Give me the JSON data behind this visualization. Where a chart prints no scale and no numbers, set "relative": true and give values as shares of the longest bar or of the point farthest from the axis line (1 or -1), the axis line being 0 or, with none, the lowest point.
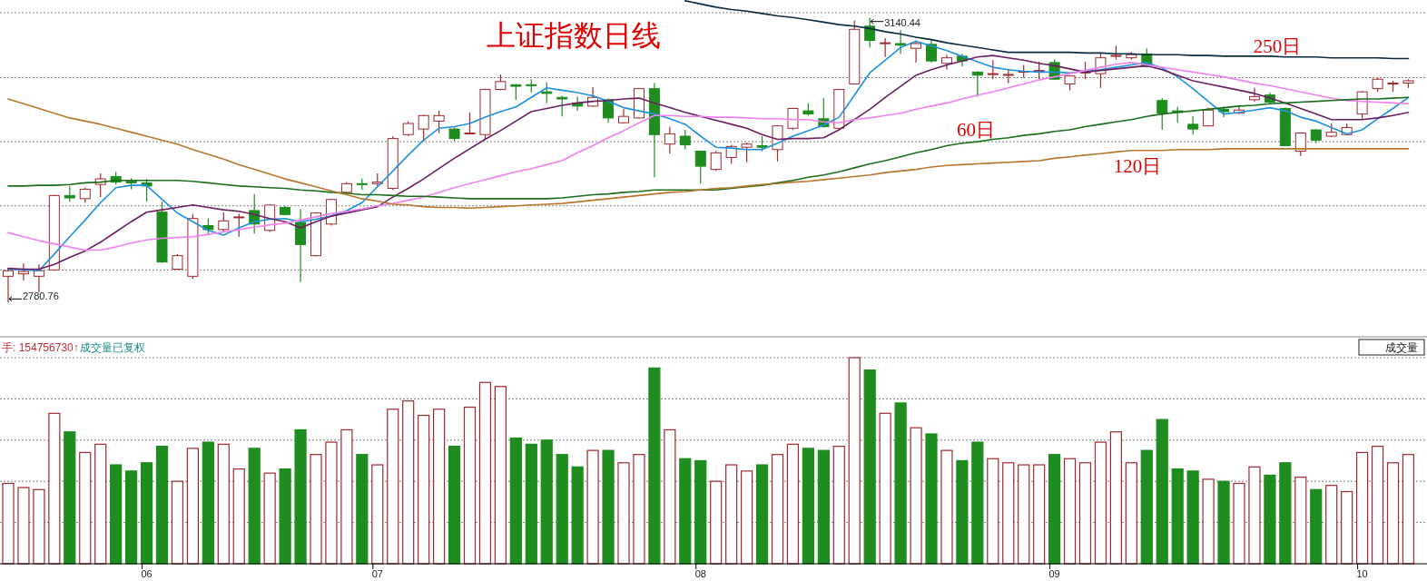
{
  "chart_data": [
    {
      "type": "candlestick",
      "title": "上证指数日线",
      "categories": [
        null,
        null,
        null,
        null,
        null,
        null,
        null,
        null,
        null,
        "06",
        null,
        null,
        null,
        null,
        null,
        null,
        null,
        null,
        null,
        null,
        null,
        null,
        null,
        null,
        "07",
        null,
        null,
        null,
        null,
        null,
        null,
        null,
        null,
        null,
        null,
        null,
        null,
        null,
        null,
        null,
        null,
        null,
        null,
        null,
        null,
        "08",
        null,
        null,
        null,
        null,
        null,
        null,
        null,
        null,
        null,
        null,
        null,
        null,
        null,
        null,
        null,
        null,
        null,
        null,
        null,
        null,
        null,
        null,
        "09",
        null,
        null,
        null,
        null,
        null,
        null,
        null,
        null,
        null,
        null,
        null,
        null,
        null,
        null,
        null,
        null,
        null,
        null,
        null,
        "10",
        null,
        null,
        null
      ],
      "ohlc": [
        [
          2814,
          2824,
          2780.76,
          2821
        ],
        [
          2817,
          2830,
          2809,
          2820
        ],
        [
          2814,
          2829,
          2794,
          2821
        ],
        [
          2822,
          2917,
          2821,
          2916
        ],
        [
          2916,
          2928,
          2908,
          2913
        ],
        [
          2912,
          2926,
          2907,
          2924
        ],
        [
          2930,
          2944,
          2914,
          2937
        ],
        [
          2940,
          2946,
          2930,
          2933
        ],
        [
          2934,
          2938,
          2924,
          2932
        ],
        [
          2932,
          2937,
          2908,
          2928
        ],
        [
          2895,
          2908,
          2831,
          2832
        ],
        [
          2823,
          2842,
          2822,
          2840
        ],
        [
          2814,
          2893,
          2811,
          2887
        ],
        [
          2878,
          2887,
          2866,
          2873
        ],
        [
          2873,
          2895,
          2870,
          2884
        ],
        [
          2888,
          2893,
          2864,
          2889
        ],
        [
          2897,
          2918,
          2868,
          2880
        ],
        [
          2872,
          2905,
          2870,
          2904
        ],
        [
          2901,
          2903,
          2891,
          2892
        ],
        [
          2882,
          2899,
          2807,
          2854
        ],
        [
          2840,
          2895,
          2839,
          2894
        ],
        [
          2880,
          2912,
          2878,
          2911
        ],
        [
          2920,
          2933,
          2918,
          2931
        ],
        [
          2931,
          2937,
          2923,
          2930
        ],
        [
          2931,
          2944,
          2927,
          2933
        ],
        [
          2925,
          2991,
          2923,
          2988
        ],
        [
          2993,
          3010,
          2991,
          3007
        ],
        [
          3000,
          3018,
          2984,
          3017
        ],
        [
          3010,
          3023,
          2995,
          3017
        ],
        [
          3000,
          3002,
          2985,
          2988
        ],
        [
          2994,
          3021,
          2993,
          2995
        ],
        [
          2993,
          3051,
          2987,
          3050
        ],
        [
          3050,
          3069,
          3049,
          3060
        ],
        [
          3056,
          3057,
          3037,
          3054
        ],
        [
          3056,
          3063,
          3046,
          3055
        ],
        [
          3047,
          3059,
          3033,
          3045
        ],
        [
          3040,
          3042,
          3016,
          3038
        ],
        [
          3033,
          3041,
          3023,
          3029
        ],
        [
          3029,
          3053,
          3028,
          3040
        ],
        [
          3037,
          3039,
          3008,
          3014
        ],
        [
          3008,
          3025,
          3007,
          3016
        ],
        [
          3014,
          3052,
          3013,
          3051
        ],
        [
          3051,
          3058,
          2939,
          2993
        ],
        [
          2981,
          3003,
          2969,
          2994
        ],
        [
          2991,
          2999,
          2974,
          2980
        ],
        [
          2972,
          2973,
          2931,
          2953
        ],
        [
          2949,
          2972,
          2947,
          2970
        ],
        [
          2964,
          2980,
          2956,
          2978
        ],
        [
          2977,
          2983,
          2958,
          2981
        ],
        [
          2979,
          2991,
          2972,
          2977
        ],
        [
          2974,
          3005,
          2959,
          3004
        ],
        [
          3001,
          3027,
          2999,
          3026
        ],
        [
          3023,
          3033,
          3017,
          3019
        ],
        [
          3013,
          3039,
          3002,
          3003
        ],
        [
          3001,
          3051,
          3000,
          3050
        ],
        [
          3057,
          3137,
          3056,
          3126
        ],
        [
          3130,
          3140.44,
          3103,
          3112
        ],
        [
          3108,
          3115,
          3091,
          3109
        ],
        [
          3108,
          3125,
          3095,
          3106
        ],
        [
          3102,
          3112,
          3084,
          3108
        ],
        [
          3107,
          3113,
          3084,
          3086
        ],
        [
          3083,
          3094,
          3075,
          3090
        ],
        [
          3092,
          3095,
          3079,
          3086
        ],
        [
          3072,
          3073,
          3041,
          3068
        ],
        [
          3069,
          3087,
          3063,
          3070
        ],
        [
          3068,
          3075,
          3058,
          3069
        ],
        [
          3072,
          3081,
          3065,
          3073
        ],
        [
          3073,
          3085,
          3063,
          3074
        ],
        [
          3084,
          3088,
          3062,
          3063
        ],
        [
          3057,
          3068,
          3049,
          3067
        ],
        [
          3071,
          3085,
          3063,
          3072
        ],
        [
          3070,
          3096,
          3052,
          3090
        ],
        [
          3092,
          3105,
          3088,
          3093
        ],
        [
          3090,
          3097,
          3088,
          3094
        ],
        [
          3095,
          3102,
          3078,
          3079
        ],
        [
          3036,
          3039,
          2999,
          3020
        ],
        [
          3023,
          3028,
          3008,
          3021
        ],
        [
          3006,
          3016,
          2993,
          3000
        ],
        [
          3004,
          3027,
          3003,
          3024
        ],
        [
          3025,
          3028,
          3015,
          3022
        ],
        [
          3020,
          3030,
          3019,
          3024
        ],
        [
          3037,
          3052,
          3035,
          3041
        ],
        [
          3043,
          3046,
          3033,
          3034
        ],
        [
          3026,
          3027,
          2978,
          2979
        ],
        [
          2972,
          2996,
          2966,
          2995
        ],
        [
          2999,
          3000,
          2982,
          2986
        ],
        [
          2991,
          3007,
          2990,
          2996
        ],
        [
          2993,
          3007,
          2992,
          3002
        ],
        [
          3019,
          3048,
          3013,
          3047
        ],
        [
          3051,
          3065,
          3047,
          3063
        ],
        [
          3057,
          3061,
          3047,
          3058
        ],
        [
          3058,
          3063,
          3052,
          3061
        ]
      ],
      "series": [
        {
          "type": "line",
          "color": "#1e90e0",
          "values": [
            2823,
            2822,
            2821,
            2842,
            2864,
            2885,
            2907,
            2926,
            2929,
            2929,
            2911,
            2894,
            2883,
            2872,
            2866,
            2875,
            2883,
            2886,
            2887,
            2883,
            2886,
            2890,
            2897,
            2907,
            2927,
            2947,
            2967,
            2986,
            3001,
            3003,
            3007,
            3015,
            3022,
            3028,
            3040,
            3052,
            3049,
            3046,
            3042,
            3035,
            3027,
            3023,
            3019,
            3013,
            3006,
            2991,
            2977,
            2976,
            2974,
            2974,
            2982,
            2991,
            2998,
            3005,
            3015,
            3043,
            3071,
            3087,
            3103,
            3111,
            3105,
            3099,
            3092,
            3085,
            3078,
            3075,
            3073,
            3072,
            3072,
            3071,
            3073,
            3075,
            3078,
            3081,
            3084,
            3077,
            3066,
            3051,
            3035,
            3019,
            3021,
            3024,
            3027,
            3023,
            3015,
            3010,
            3002,
            2994,
            2999,
            3013,
            3026,
            3040
          ]
        },
        {
          "type": "line",
          "color": "#6b1f5f",
          "values": [
            2824,
            2823,
            2823,
            2829,
            2838,
            2846,
            2857,
            2870,
            2883,
            2895,
            2898,
            2901,
            2904,
            2901,
            2898,
            2896,
            2892,
            2887,
            2883,
            2875,
            2883,
            2890,
            2894,
            2898,
            2902,
            2914,
            2925,
            2937,
            2950,
            2963,
            2975,
            2987,
            2998,
            3010,
            3022,
            3026,
            3030,
            3033,
            3035,
            3036,
            3038,
            3039,
            3033,
            3027,
            3021,
            3016,
            3011,
            3006,
            3001,
            2993,
            2987,
            2988,
            2988,
            2989,
            2999,
            3012,
            3025,
            3040,
            3054,
            3068,
            3075,
            3081,
            3086,
            3091,
            3093,
            3090,
            3087,
            3083,
            3080,
            3076,
            3072,
            3074,
            3076,
            3078,
            3080,
            3075,
            3068,
            3061,
            3057,
            3053,
            3049,
            3045,
            3039,
            3033,
            3026,
            3019,
            3012,
            3012,
            3012,
            3014,
            3017,
            3021
          ]
        },
        {
          "type": "line",
          "color": "#ee82ee",
          "values": [
            2869,
            2864,
            2859,
            2855,
            2851,
            2847,
            2847,
            2851,
            2856,
            2860,
            2862,
            2863,
            2864,
            2867,
            2870,
            2873,
            2876,
            2879,
            2881,
            2885,
            2889,
            2893,
            2896,
            2899,
            2903,
            2906,
            2910,
            2914,
            2920,
            2926,
            2931,
            2936,
            2941,
            2946,
            2950,
            2955,
            2960,
            2970,
            2979,
            2989,
            2998,
            3008,
            3017,
            3017,
            3016,
            3016,
            3015,
            3015,
            3014,
            3013,
            3013,
            3012,
            3012,
            3009,
            3008,
            3012,
            3014,
            3017,
            3020,
            3025,
            3029,
            3033,
            3038,
            3043,
            3047,
            3052,
            3057,
            3062,
            3066,
            3070,
            3074,
            3078,
            3082,
            3084,
            3081,
            3078,
            3075,
            3072,
            3069,
            3066,
            3062,
            3058,
            3055,
            3051,
            3047,
            3043,
            3039,
            3036,
            3035,
            3034,
            3033,
            3032
          ]
        },
        {
          "type": "line",
          "name": "60日",
          "color": "#1a6e1a",
          "values": [
            2928,
            2928,
            2929,
            2929,
            2930,
            2932,
            2933,
            2935,
            2935,
            2935,
            2935,
            2935,
            2934,
            2932,
            2930,
            2928,
            2927,
            2926,
            2925,
            2923,
            2922,
            2920,
            2919,
            2917,
            2917,
            2916,
            2915,
            2915,
            2914,
            2913,
            2912,
            2912,
            2912,
            2912,
            2912,
            2912,
            2913,
            2915,
            2917,
            2918,
            2920,
            2921,
            2923,
            2923,
            2923,
            2923,
            2923,
            2925,
            2927,
            2929,
            2932,
            2935,
            2939,
            2942,
            2946,
            2951,
            2956,
            2960,
            2965,
            2970,
            2974,
            2979,
            2982,
            2984,
            2987,
            2989,
            2992,
            2994,
            2997,
            2999,
            3003,
            3006,
            3009,
            3012,
            3016,
            3019,
            3021,
            3023,
            3025,
            3027,
            3029,
            3030,
            3032,
            3033,
            3034,
            3035,
            3036,
            3037,
            3038,
            3038,
            3039,
            3040
          ]
        },
        {
          "type": "line",
          "name": "120日",
          "color": "#b8762c",
          "values": [
            3038,
            3032,
            3026,
            3020,
            3014,
            3010,
            3006,
            3001,
            2996,
            2991,
            2986,
            2981,
            2974,
            2968,
            2962,
            2955,
            2949,
            2943,
            2937,
            2932,
            2927,
            2922,
            2917,
            2912,
            2909,
            2905,
            2904,
            2902,
            2901,
            2901,
            2900,
            2901,
            2902,
            2903,
            2904,
            2905,
            2906,
            2908,
            2910,
            2912,
            2914,
            2916,
            2918,
            2920,
            2921,
            2923,
            2925,
            2926,
            2928,
            2930,
            2931,
            2933,
            2934,
            2936,
            2938,
            2940,
            2942,
            2945,
            2947,
            2949,
            2952,
            2954,
            2955,
            2956,
            2957,
            2958,
            2959,
            2960,
            2963,
            2965,
            2967,
            2969,
            2971,
            2973,
            2973,
            2973,
            2974,
            2974,
            2974,
            2975,
            2975,
            2975,
            2975,
            2975,
            2975,
            2975,
            2975,
            2975,
            2975,
            2975,
            2975,
            2975
          ]
        },
        {
          "type": "line",
          "name": "250日",
          "color": "#0b2a40",
          "values": [
            null,
            null,
            null,
            null,
            null,
            null,
            null,
            null,
            null,
            null,
            null,
            null,
            null,
            null,
            null,
            null,
            null,
            null,
            null,
            null,
            null,
            null,
            null,
            null,
            null,
            null,
            null,
            null,
            null,
            null,
            null,
            null,
            null,
            null,
            null,
            null,
            null,
            null,
            null,
            null,
            null,
            null,
            null,
            null,
            3162,
            3158,
            3154,
            3151,
            3149,
            3146,
            3143,
            3141,
            3138,
            3135,
            3132,
            3130,
            3127,
            3123,
            3120,
            3116,
            3113,
            3109,
            3106,
            3103,
            3100,
            3097,
            3097,
            3097,
            3097,
            3097,
            3096,
            3096,
            3095,
            3095,
            3094,
            3094,
            3094,
            3093,
            3093,
            3092,
            3092,
            3092,
            3092,
            3091,
            3091,
            3091,
            3090,
            3090,
            3090,
            3090,
            3089,
            3089
          ]
        }
      ],
      "annotations": [
        "3140.44",
        "2780.76"
      ],
      "yticks": [
        {
          "value": 3147,
          "label": null
        },
        {
          "value": 3065,
          "label": null
        },
        {
          "value": 2984,
          "label": null
        },
        {
          "value": 2903,
          "label": null
        },
        {
          "value": 2822,
          "label": null
        }
      ],
      "grid": "y",
      "marker": "none",
      "tick_labels": false
    },
    {
      "type": "bar",
      "relative": true,
      "categories": [
        null,
        null,
        null,
        null,
        null,
        null,
        null,
        null,
        null,
        "06",
        null,
        null,
        null,
        null,
        null,
        null,
        null,
        null,
        null,
        null,
        null,
        null,
        null,
        null,
        "07",
        null,
        null,
        null,
        null,
        null,
        null,
        null,
        null,
        null,
        null,
        null,
        null,
        null,
        null,
        null,
        null,
        null,
        null,
        null,
        null,
        "08",
        null,
        null,
        null,
        null,
        null,
        null,
        null,
        null,
        null,
        null,
        null,
        null,
        null,
        null,
        null,
        null,
        null,
        null,
        null,
        null,
        null,
        null,
        "09",
        null,
        null,
        null,
        null,
        null,
        null,
        null,
        null,
        null,
        null,
        null,
        null,
        null,
        null,
        null,
        null,
        null,
        null,
        null,
        "10",
        null,
        null,
        null
      ],
      "values": [
        0.39,
        0.37,
        0.36,
        0.73,
        0.64,
        0.54,
        0.58,
        0.48,
        0.45,
        0.49,
        0.57,
        0.4,
        0.56,
        0.59,
        0.58,
        0.46,
        0.56,
        0.44,
        0.46,
        0.65,
        0.53,
        0.59,
        0.65,
        0.53,
        0.48,
        0.75,
        0.79,
        0.72,
        0.75,
        0.57,
        0.76,
        0.88,
        0.86,
        0.61,
        0.58,
        0.6,
        0.53,
        0.47,
        0.55,
        0.55,
        0.49,
        0.53,
        0.95,
        0.65,
        0.51,
        0.5,
        0.4,
        0.48,
        0.45,
        0.48,
        0.53,
        0.58,
        0.56,
        0.55,
        0.57,
        1,
        0.94,
        0.73,
        0.78,
        0.66,
        0.63,
        0.55,
        0.5,
        0.59,
        0.51,
        0.49,
        0.48,
        0.48,
        0.53,
        0.51,
        0.49,
        0.59,
        0.64,
        0.49,
        0.55,
        0.7,
        0.46,
        0.45,
        0.41,
        0.4,
        0.39,
        0.47,
        0.43,
        0.49,
        0.42,
        0.36,
        0.38,
        0.35,
        0.54,
        0.57,
        0.49,
        0.53
      ],
      "colors": [
        "#a0282d",
        "#a0282d",
        "#a0282d",
        "#a0282d",
        "#1e8c1e",
        "#a0282d",
        "#a0282d",
        "#1e8c1e",
        "#1e8c1e",
        "#1e8c1e",
        "#1e8c1e",
        "#a0282d",
        "#a0282d",
        "#1e8c1e",
        "#a0282d",
        "#a0282d",
        "#1e8c1e",
        "#a0282d",
        "#1e8c1e",
        "#1e8c1e",
        "#a0282d",
        "#a0282d",
        "#a0282d",
        "#1e8c1e",
        "#a0282d",
        "#a0282d",
        "#a0282d",
        "#a0282d",
        "#a0282d",
        "#1e8c1e",
        "#a0282d",
        "#a0282d",
        "#a0282d",
        "#1e8c1e",
        "#1e8c1e",
        "#1e8c1e",
        "#1e8c1e",
        "#1e8c1e",
        "#a0282d",
        "#1e8c1e",
        "#a0282d",
        "#a0282d",
        "#1e8c1e",
        "#a0282d",
        "#1e8c1e",
        "#1e8c1e",
        "#a0282d",
        "#a0282d",
        "#a0282d",
        "#1e8c1e",
        "#a0282d",
        "#a0282d",
        "#1e8c1e",
        "#1e8c1e",
        "#a0282d",
        "#a0282d",
        "#1e8c1e",
        "#a0282d",
        "#1e8c1e",
        "#a0282d",
        "#1e8c1e",
        "#a0282d",
        "#1e8c1e",
        "#1e8c1e",
        "#a0282d",
        "#a0282d",
        "#a0282d",
        "#a0282d",
        "#1e8c1e",
        "#a0282d",
        "#a0282d",
        "#a0282d",
        "#a0282d",
        "#a0282d",
        "#1e8c1e",
        "#1e8c1e",
        "#1e8c1e",
        "#1e8c1e",
        "#a0282d",
        "#1e8c1e",
        "#a0282d",
        "#a0282d",
        "#1e8c1e",
        "#1e8c1e",
        "#a0282d",
        "#1e8c1e",
        "#a0282d",
        "#a0282d",
        "#a0282d",
        "#a0282d",
        "#a0282d",
        "#a0282d"
      ],
      "annotations": [
        "手: 154756730↑",
        "成交量已复权",
        "成交量"
      ],
      "grid": "y"
    }
  ]
}
